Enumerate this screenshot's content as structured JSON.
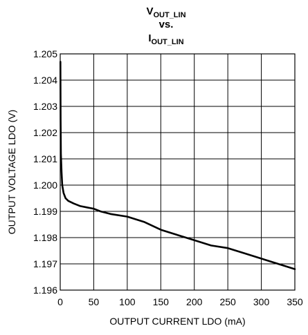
{
  "chart_data": {
    "type": "line",
    "title": {
      "line1_main": "V",
      "line1_sub": "OUT_LIN",
      "line2": "vs.",
      "line3_main": "I",
      "line3_sub": "OUT_LIN"
    },
    "xlabel": "OUTPUT CURRENT LDO (mA)",
    "ylabel": "OUTPUT VOLTAGE LDO (V)",
    "xlim": [
      0,
      350
    ],
    "ylim": [
      1.196,
      1.205
    ],
    "x_ticks": [
      "0",
      "50",
      "100",
      "150",
      "200",
      "250",
      "300",
      "350"
    ],
    "y_ticks": [
      "1.196",
      "1.197",
      "1.198",
      "1.199",
      "1.200",
      "1.201",
      "1.202",
      "1.203",
      "1.204",
      "1.205"
    ],
    "grid": true,
    "colors": {
      "line": "#000000",
      "grid": "#000000",
      "background": "#ffffff"
    },
    "series": [
      {
        "x": [
          0.3,
          0.6,
          1,
          2,
          3,
          5,
          8,
          12,
          20,
          30,
          40,
          50,
          60,
          75,
          100,
          125,
          150,
          175,
          200,
          225,
          250,
          275,
          300,
          325,
          350
        ],
        "y": [
          1.2047,
          1.2025,
          1.2012,
          1.2005,
          1.2,
          1.1997,
          1.1995,
          1.1994,
          1.1993,
          1.1992,
          1.19915,
          1.1991,
          1.199,
          1.1989,
          1.1988,
          1.1986,
          1.1983,
          1.1981,
          1.1979,
          1.1977,
          1.1976,
          1.1974,
          1.1972,
          1.197,
          1.1968
        ]
      }
    ]
  }
}
